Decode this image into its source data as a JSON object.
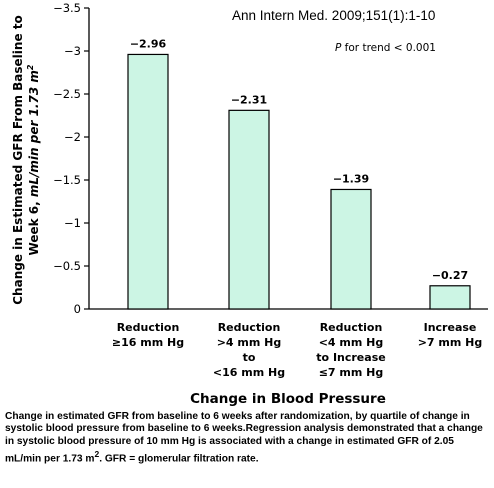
{
  "citation": "Ann Intern Med. 2009;151(1):1-10",
  "trend_prefix": "P",
  "trend_suffix": " for trend < 0.001",
  "caption_before_sup": "Change in estimated GFR from baseline to 6 weeks after randomization, by quartile of change in systolic blood pressure from baseline to 6 weeks.Regression analysis demonstrated that a change in systolic blood pressure of 10 mm Hg is associated with a change in estimated GFR of 2.05 mL/min per 1.73 m",
  "caption_sup": "2",
  "caption_after_sup": ". GFR = glomerular filtration rate.",
  "chart_data": {
    "type": "bar",
    "xlabel": "Change in Blood Pressure",
    "ylabel_line1": "Change in Estimated GFR From Baseline to",
    "ylabel_line2_plain": "Week 6, ",
    "ylabel_line2_italic": "mL/min per 1.73 m",
    "ylabel_sup": "2",
    "ylim": [
      -3.5,
      0
    ],
    "axis_inverted": true,
    "yticks": [
      0,
      -0.5,
      -1,
      -1.5,
      -2,
      -2.5,
      -3,
      -3.5
    ],
    "ytick_labels": [
      "0",
      "−0.5",
      "−1",
      "−1.5",
      "−2",
      "−2.5",
      "−3",
      "−3.5"
    ],
    "categories": [
      [
        "Reduction",
        "≥16 mm Hg"
      ],
      [
        "Reduction",
        ">4 mm Hg",
        "to",
        "<16 mm Hg"
      ],
      [
        "Reduction",
        "<4 mm Hg",
        "to Increase",
        "≤7 mm Hg"
      ],
      [
        "Increase",
        ">7 mm Hg"
      ]
    ],
    "values": [
      -2.96,
      -2.31,
      -1.39,
      -0.27
    ],
    "value_labels": [
      "−2.96",
      "−2.31",
      "−1.39",
      "−0.27"
    ],
    "bar_color": "#ccf5e4",
    "bar_stroke": "#000000",
    "grid": false
  }
}
